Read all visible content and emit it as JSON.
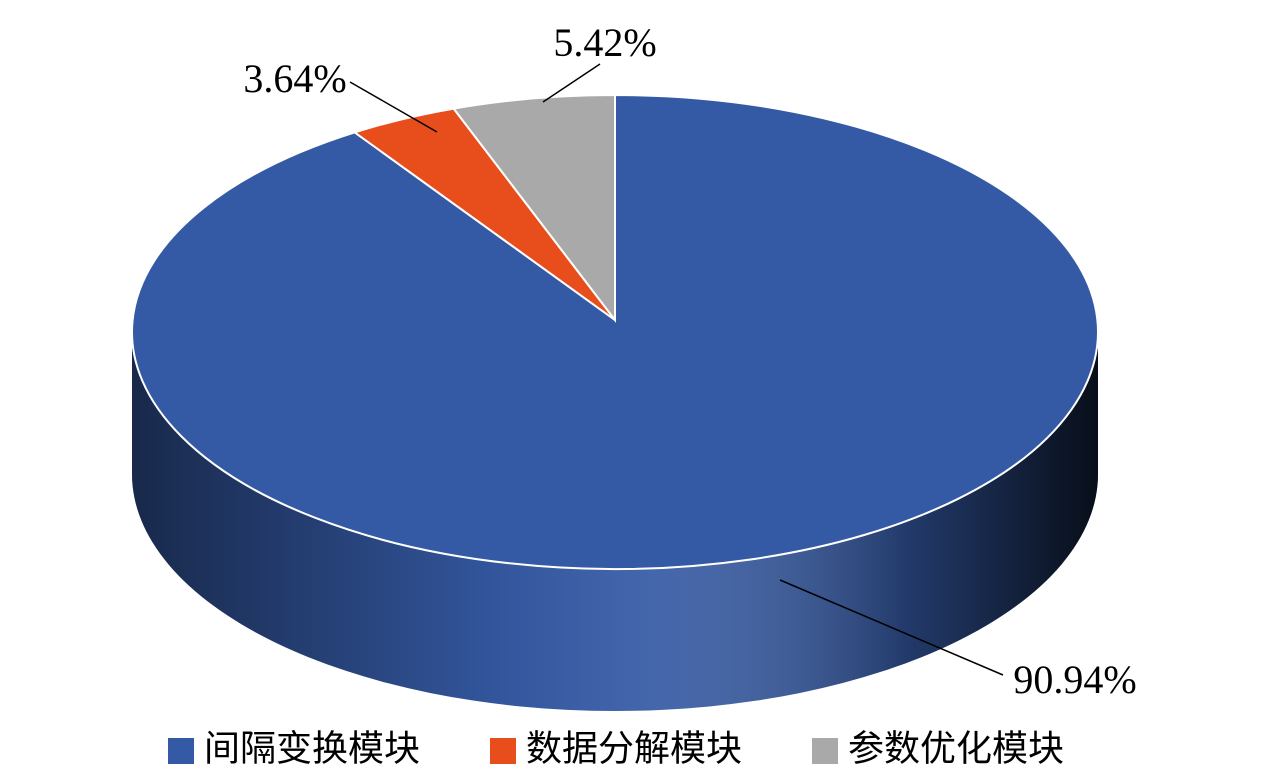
{
  "chart_data": {
    "type": "pie",
    "categories": [
      "间隔变换模块",
      "数据分解模块",
      "参数优化模块"
    ],
    "values": [
      90.94,
      3.64,
      5.42
    ],
    "value_labels": [
      "90.94%",
      "3.64%",
      "5.42%"
    ],
    "colors": [
      "#355aa5",
      "#e84e1c",
      "#a9a9a9"
    ]
  }
}
